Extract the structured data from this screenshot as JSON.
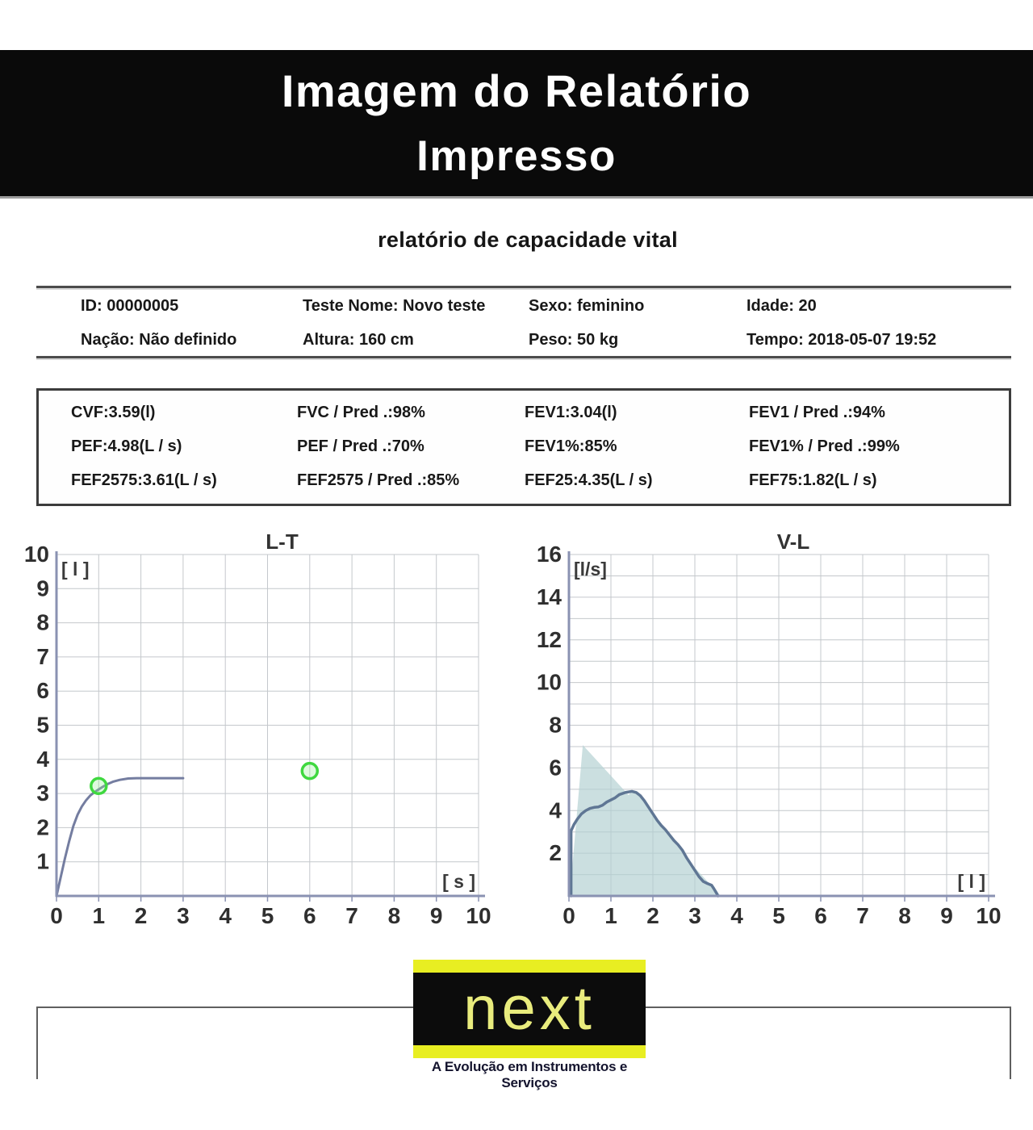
{
  "banner": {
    "line1": "Imagem do Relatório",
    "line2": "Impresso"
  },
  "report": {
    "title": "relatório de capacidade vital",
    "info_rows": [
      [
        "ID: 00000005",
        "Teste Nome: Novo teste",
        "Sexo: feminino",
        "Idade: 20"
      ],
      [
        "Nação: Não definido",
        "Altura: 160 cm",
        "Peso: 50 kg",
        "Tempo: 2018-05-07 19:52"
      ]
    ],
    "results_rows": [
      [
        "CVF:3.59(l)",
        "FVC / Pred .:98%",
        "FEV1:3.04(l)",
        "FEV1 / Pred .:94%"
      ],
      [
        "PEF:4.98(L / s)",
        "PEF / Pred .:70%",
        "FEV1%:85%",
        "FEV1% / Pred .:99%"
      ],
      [
        "FEF2575:3.61(L / s)",
        "FEF2575 / Pred .:85%",
        "FEF25:4.35(L / s)",
        "FEF75:1.82(L / s)"
      ]
    ]
  },
  "chart_data": [
    {
      "type": "line",
      "name": "volume-time",
      "title": "L-T",
      "y_unit": "[ l ]",
      "x_unit": "[ s ]",
      "xlim": [
        0,
        10
      ],
      "ylim": [
        0,
        10
      ],
      "grid": true,
      "xticks": [
        0,
        1,
        2,
        3,
        4,
        5,
        6,
        7,
        8,
        9,
        10
      ],
      "yticks": [
        1,
        2,
        3,
        4,
        5,
        6,
        7,
        8,
        9,
        10
      ],
      "series": [
        {
          "name": "volume-time-curve",
          "color": "#747da0",
          "width": 3,
          "points": [
            [
              0,
              0
            ],
            [
              0.1,
              0.55
            ],
            [
              0.2,
              1.1
            ],
            [
              0.3,
              1.6
            ],
            [
              0.4,
              2.05
            ],
            [
              0.5,
              2.38
            ],
            [
              0.6,
              2.62
            ],
            [
              0.7,
              2.8
            ],
            [
              0.8,
              2.94
            ],
            [
              0.9,
              3.04
            ],
            [
              1,
              3.12
            ],
            [
              1.1,
              3.2
            ],
            [
              1.2,
              3.27
            ],
            [
              1.35,
              3.35
            ],
            [
              1.5,
              3.4
            ],
            [
              1.7,
              3.44
            ],
            [
              1.9,
              3.45
            ],
            [
              2.4,
              3.45
            ],
            [
              3,
              3.45
            ]
          ]
        }
      ],
      "markers": {
        "name": "measurement-markers",
        "color": "#3fd83f",
        "points": [
          [
            1,
            3.22
          ],
          [
            6,
            3.66
          ]
        ]
      }
    },
    {
      "type": "area",
      "name": "flow-volume",
      "title": "V-L",
      "y_unit": "[l/s]",
      "x_unit": "[ l ]",
      "xlim": [
        0,
        10
      ],
      "ylim": [
        0,
        16
      ],
      "grid": true,
      "xticks": [
        0,
        1,
        2,
        3,
        4,
        5,
        6,
        7,
        8,
        9,
        10
      ],
      "yticks": [
        2,
        4,
        6,
        8,
        10,
        12,
        14,
        16
      ],
      "fill": {
        "name": "predicted-envelope",
        "color": "rgba(178,208,210,0.68)",
        "points": [
          [
            0.02,
            0
          ],
          [
            0.33,
            7.07
          ],
          [
            1.42,
            4.73
          ],
          [
            1.5,
            4.9
          ],
          [
            1.6,
            4.85
          ],
          [
            1.7,
            4.7
          ],
          [
            1.8,
            4.45
          ],
          [
            1.9,
            4.15
          ],
          [
            2,
            3.85
          ],
          [
            2.1,
            3.55
          ],
          [
            2.2,
            3.3
          ],
          [
            2.3,
            3.1
          ],
          [
            2.4,
            2.85
          ],
          [
            2.5,
            2.6
          ],
          [
            2.6,
            2.4
          ],
          [
            2.7,
            2.15
          ],
          [
            2.8,
            1.8
          ],
          [
            2.87,
            1.6
          ],
          [
            3.62,
            0
          ]
        ]
      },
      "series": [
        {
          "name": "flow-volume-curve",
          "color": "#5f7694",
          "width": 3.5,
          "points": [
            [
              0.05,
              0
            ],
            [
              0.05,
              3.05
            ],
            [
              0.12,
              3.35
            ],
            [
              0.2,
              3.6
            ],
            [
              0.3,
              3.85
            ],
            [
              0.4,
              4
            ],
            [
              0.5,
              4.1
            ],
            [
              0.6,
              4.15
            ],
            [
              0.7,
              4.17
            ],
            [
              0.8,
              4.25
            ],
            [
              0.9,
              4.4
            ],
            [
              1,
              4.5
            ],
            [
              1.1,
              4.6
            ],
            [
              1.2,
              4.75
            ],
            [
              1.35,
              4.85
            ],
            [
              1.5,
              4.9
            ],
            [
              1.6,
              4.85
            ],
            [
              1.7,
              4.7
            ],
            [
              1.8,
              4.45
            ],
            [
              1.9,
              4.15
            ],
            [
              2,
              3.85
            ],
            [
              2.1,
              3.55
            ],
            [
              2.2,
              3.3
            ],
            [
              2.3,
              3.1
            ],
            [
              2.4,
              2.85
            ],
            [
              2.5,
              2.6
            ],
            [
              2.6,
              2.4
            ],
            [
              2.7,
              2.15
            ],
            [
              2.8,
              1.8
            ],
            [
              2.9,
              1.5
            ],
            [
              3,
              1.2
            ],
            [
              3.1,
              0.9
            ],
            [
              3.2,
              0.68
            ],
            [
              3.3,
              0.58
            ],
            [
              3.4,
              0.5
            ],
            [
              3.45,
              0.35
            ],
            [
              3.52,
              0.12
            ],
            [
              3.55,
              0
            ]
          ]
        }
      ]
    }
  ],
  "logo": {
    "brand": "next",
    "tagline": "A Evolução em Instrumentos e Serviços"
  },
  "colors": {
    "banner_bg": "#0a0a0a",
    "grid": "#c4c8cc",
    "axis": "#8a92b2",
    "marker_green": "#3fd83f",
    "curve_slate": "#5f7694",
    "fill_teal": "rgba(178,208,210,0.68)",
    "logo_yellow": "#e8ee22",
    "logo_text_yellow": "#e9ec7d",
    "tagline_navy": "#14142e"
  }
}
